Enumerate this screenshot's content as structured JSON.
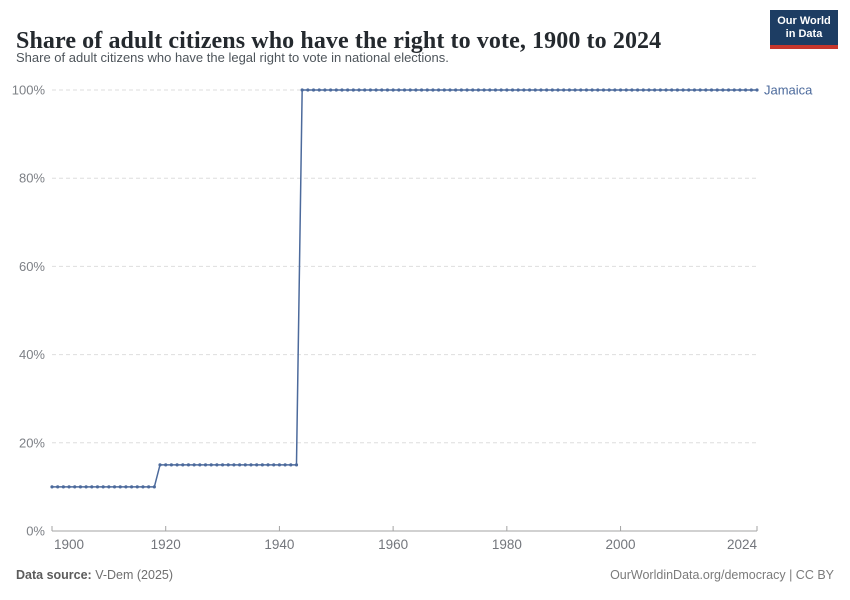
{
  "header": {
    "title": "Share of adult citizens who have the right to vote, 1900 to 2024",
    "subtitle": "Share of adult citizens who have the legal right to vote in national elections.",
    "logo": {
      "line1": "Our World",
      "line2": "in Data",
      "bg_color": "#1D3D63",
      "accent_color": "#C7372D"
    }
  },
  "chart_data": {
    "type": "line",
    "title": "Share of adult citizens who have the right to vote, 1900 to 2024",
    "xlabel": "",
    "ylabel": "",
    "x_range": [
      1900,
      2024
    ],
    "y_range": [
      0,
      100
    ],
    "x_tick_values": [
      1900,
      1920,
      1940,
      1960,
      1980,
      2000,
      2024
    ],
    "x_tick_labels": [
      "1900",
      "1920",
      "1940",
      "1960",
      "1980",
      "2000",
      "2024"
    ],
    "y_tick_values": [
      0,
      20,
      40,
      60,
      80,
      100
    ],
    "y_tick_labels": [
      "0%",
      "20%",
      "40%",
      "60%",
      "80%",
      "100%"
    ],
    "grid": "dashed-horizontal",
    "legend_position": "right-of-line-end",
    "series": [
      {
        "name": "Jamaica",
        "color": "#4C6A9C",
        "markers": "one-dot-per-year",
        "steps": [
          {
            "from_year": 1900,
            "to_year": 1918,
            "value": 10
          },
          {
            "from_year": 1919,
            "to_year": 1943,
            "value": 15
          },
          {
            "from_year": 1944,
            "to_year": 2024,
            "value": 100
          }
        ]
      }
    ],
    "colors": {
      "gridline": "#dedede",
      "axis": "#a3a3a3",
      "tick_text": "#73767c"
    }
  },
  "footer": {
    "source_label": "Data source:",
    "source_value": " V-Dem (2025)",
    "link": "OurWorldinData.org/democracy | CC BY"
  }
}
